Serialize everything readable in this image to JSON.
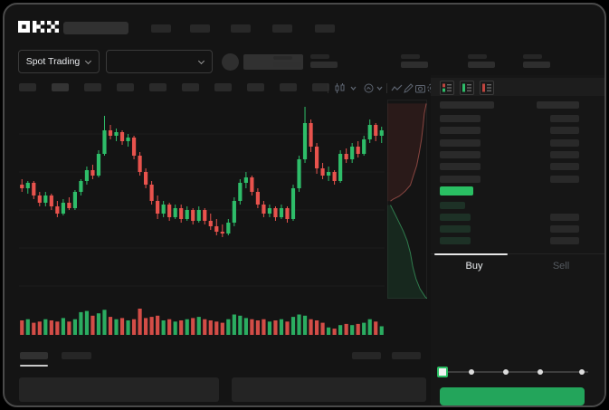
{
  "brand": "OKX",
  "market_bar": {
    "market_type": "Spot Trading"
  },
  "toolbar": {
    "timeframe_slots": 10,
    "icons": [
      "candles-icon",
      "chevron-down-icon",
      "indicator-icon",
      "line-chart-icon",
      "draw-icon",
      "camera-icon",
      "settings-icon",
      "fullscreen-icon"
    ]
  },
  "order_book": {
    "toggle_icons": [
      "book-split-icon",
      "book-bids-icon",
      "book-asks-icon"
    ],
    "ask_rows": 6,
    "bid_rows": 4,
    "last_price_color": "#2abf63"
  },
  "trade_panel": {
    "tabs": [
      "Buy",
      "Sell"
    ],
    "active_tab": "Buy",
    "input_slots": 3,
    "slider_stops": [
      0,
      0.2,
      0.45,
      0.7,
      1
    ],
    "slider_value_index": 0,
    "buy_button_color": "#23a55b"
  },
  "chart_data": {
    "type": "candlestick",
    "colors": {
      "up": "#2ebd69",
      "down": "#e8534d"
    },
    "grid": true,
    "candles": [
      [
        54,
        57,
        50,
        52
      ],
      [
        52,
        56,
        49,
        55
      ],
      [
        55,
        56,
        46,
        48
      ],
      [
        48,
        50,
        42,
        44
      ],
      [
        44,
        50,
        42,
        48
      ],
      [
        48,
        49,
        40,
        42
      ],
      [
        42,
        45,
        36,
        38
      ],
      [
        38,
        46,
        37,
        44
      ],
      [
        44,
        47,
        40,
        41
      ],
      [
        41,
        51,
        40,
        50
      ],
      [
        50,
        57,
        48,
        56
      ],
      [
        56,
        64,
        54,
        62
      ],
      [
        62,
        65,
        57,
        59
      ],
      [
        59,
        73,
        58,
        71
      ],
      [
        71,
        92,
        70,
        84
      ],
      [
        84,
        87,
        79,
        81
      ],
      [
        81,
        85,
        78,
        83
      ],
      [
        83,
        84,
        76,
        78
      ],
      [
        78,
        82,
        75,
        80
      ],
      [
        80,
        81,
        68,
        70
      ],
      [
        70,
        72,
        59,
        61
      ],
      [
        61,
        63,
        52,
        54
      ],
      [
        54,
        56,
        43,
        45
      ],
      [
        45,
        48,
        35,
        38
      ],
      [
        38,
        45,
        36,
        43
      ],
      [
        43,
        44,
        34,
        36
      ],
      [
        36,
        43,
        35,
        41
      ],
      [
        41,
        43,
        33,
        35
      ],
      [
        35,
        42,
        34,
        40
      ],
      [
        40,
        41,
        32,
        34
      ],
      [
        34,
        42,
        33,
        40
      ],
      [
        40,
        41,
        32,
        34
      ],
      [
        34,
        38,
        29,
        31
      ],
      [
        31,
        35,
        26,
        28
      ],
      [
        28,
        32,
        25,
        27
      ],
      [
        27,
        35,
        26,
        33
      ],
      [
        33,
        47,
        31,
        45
      ],
      [
        45,
        57,
        43,
        55
      ],
      [
        55,
        61,
        52,
        58
      ],
      [
        58,
        59,
        48,
        50
      ],
      [
        50,
        52,
        41,
        43
      ],
      [
        43,
        45,
        36,
        38
      ],
      [
        38,
        43,
        36,
        41
      ],
      [
        41,
        42,
        34,
        36
      ],
      [
        36,
        43,
        35,
        41
      ],
      [
        41,
        42,
        33,
        35
      ],
      [
        35,
        54,
        34,
        52
      ],
      [
        52,
        70,
        50,
        68
      ],
      [
        68,
        97,
        66,
        88
      ],
      [
        88,
        90,
        72,
        75
      ],
      [
        75,
        77,
        60,
        63
      ],
      [
        63,
        66,
        57,
        59
      ],
      [
        59,
        64,
        56,
        61
      ],
      [
        61,
        62,
        54,
        56
      ],
      [
        56,
        73,
        55,
        71
      ],
      [
        71,
        74,
        66,
        68
      ],
      [
        68,
        77,
        66,
        75
      ],
      [
        75,
        78,
        69,
        71
      ],
      [
        71,
        81,
        70,
        79
      ],
      [
        79,
        90,
        77,
        87
      ],
      [
        87,
        88,
        78,
        81
      ],
      [
        81,
        86,
        77,
        84
      ]
    ],
    "volume": [
      0.5,
      0.55,
      0.4,
      0.45,
      0.55,
      0.5,
      0.45,
      0.6,
      0.45,
      0.55,
      0.85,
      0.9,
      0.7,
      0.8,
      0.95,
      0.65,
      0.55,
      0.6,
      0.5,
      0.55,
      1.0,
      0.6,
      0.65,
      0.7,
      0.5,
      0.55,
      0.45,
      0.5,
      0.55,
      0.6,
      0.65,
      0.55,
      0.5,
      0.45,
      0.4,
      0.55,
      0.75,
      0.7,
      0.6,
      0.55,
      0.5,
      0.55,
      0.45,
      0.5,
      0.55,
      0.45,
      0.65,
      0.75,
      0.7,
      0.55,
      0.5,
      0.4,
      0.2,
      0.15,
      0.3,
      0.35,
      0.3,
      0.35,
      0.4,
      0.55,
      0.45,
      0.25
    ],
    "depth": {
      "asks": [
        [
          0.98,
          0.02
        ],
        [
          0.93,
          0.07
        ],
        [
          0.9,
          0.13
        ],
        [
          0.86,
          0.2
        ],
        [
          0.8,
          0.27
        ],
        [
          0.74,
          0.33
        ],
        [
          0.66,
          0.38
        ],
        [
          0.58,
          0.43
        ],
        [
          0.45,
          0.46
        ],
        [
          0.3,
          0.485
        ],
        [
          0.15,
          0.5
        ],
        [
          0.08,
          0.51
        ]
      ],
      "bids": [
        [
          0.08,
          0.53
        ],
        [
          0.18,
          0.57
        ],
        [
          0.28,
          0.61
        ],
        [
          0.4,
          0.66
        ],
        [
          0.5,
          0.71
        ],
        [
          0.58,
          0.77
        ],
        [
          0.64,
          0.84
        ],
        [
          0.72,
          0.9
        ],
        [
          0.82,
          0.95
        ],
        [
          0.95,
          0.99
        ],
        [
          1.0,
          1.0
        ]
      ],
      "ask_fill": "rgba(190,70,65,0.13)",
      "ask_line": "rgba(225,110,100,0.55)",
      "bid_fill": "rgba(46,189,105,0.12)",
      "bid_line": "rgba(70,200,120,0.55)"
    }
  }
}
